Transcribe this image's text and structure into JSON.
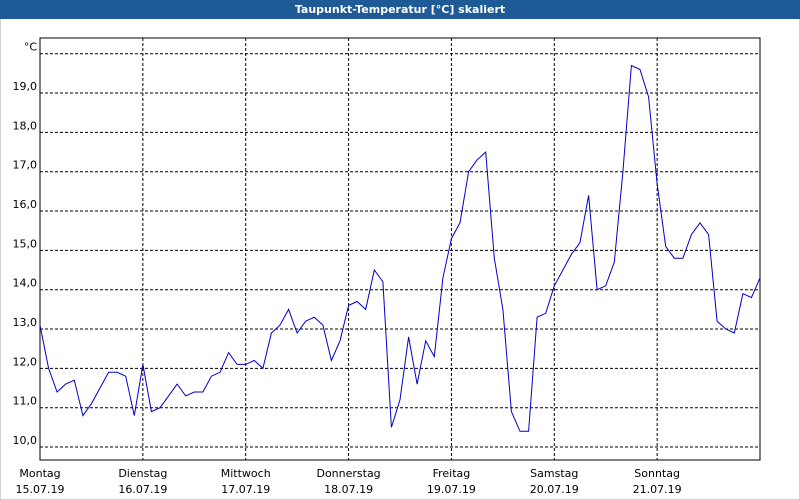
{
  "chart_data": {
    "type": "line",
    "title": "Taupunkt-Temperatur [°C] skaliert",
    "x_labels": [
      {
        "day": "Montag",
        "date": "15.07.19"
      },
      {
        "day": "Dienstag",
        "date": "16.07.19"
      },
      {
        "day": "Mittwoch",
        "date": "17.07.19"
      },
      {
        "day": "Donnerstag",
        "date": "18.07.19"
      },
      {
        "day": "Freitag",
        "date": "19.07.19"
      },
      {
        "day": "Samstag",
        "date": "20.07.19"
      },
      {
        "day": "Sonntag",
        "date": "21.07.19"
      }
    ],
    "series": [
      {
        "color": "#0000c8",
        "values": [
          13.1,
          12.0,
          11.4,
          11.6,
          11.7,
          10.8,
          11.1,
          11.5,
          11.9,
          11.9,
          11.8,
          10.8,
          12.1,
          10.9,
          11.0,
          11.3,
          11.6,
          11.3,
          11.4,
          11.4,
          11.8,
          11.9,
          12.4,
          12.1,
          12.1,
          12.2,
          12.0,
          12.9,
          13.1,
          13.5,
          12.9,
          13.2,
          13.3,
          13.1,
          12.2,
          12.7,
          13.6,
          13.7,
          13.5,
          14.5,
          14.2,
          10.5,
          11.2,
          12.8,
          11.6,
          12.7,
          12.3,
          14.3,
          15.3,
          15.7,
          17.0,
          17.3,
          17.5,
          14.8,
          13.5,
          10.9,
          10.4,
          10.4,
          13.3,
          13.4,
          14.1,
          14.5,
          14.9,
          15.2,
          16.4,
          14.0,
          14.1,
          14.7,
          17.0,
          19.7,
          19.6,
          18.9,
          16.7,
          15.1,
          14.8,
          14.8,
          15.4,
          15.7,
          15.4,
          13.2,
          13.0,
          12.9,
          13.9,
          13.8,
          14.3
        ]
      }
    ],
    "ylim": [
      9.67,
      20.4
    ],
    "yticks": [
      {
        "value": 10,
        "label": "10,0"
      },
      {
        "value": 11,
        "label": "11,0"
      },
      {
        "value": 12,
        "label": "12,0"
      },
      {
        "value": 13,
        "label": "13,0"
      },
      {
        "value": 14,
        "label": "14,0"
      },
      {
        "value": 15,
        "label": "15,0"
      },
      {
        "value": 16,
        "label": "16,0"
      },
      {
        "value": 17,
        "label": "17,0"
      },
      {
        "value": 18,
        "label": "18,0"
      },
      {
        "value": 19,
        "label": "19,0"
      },
      {
        "value": 20,
        "label": "°C"
      }
    ],
    "grid": true
  }
}
